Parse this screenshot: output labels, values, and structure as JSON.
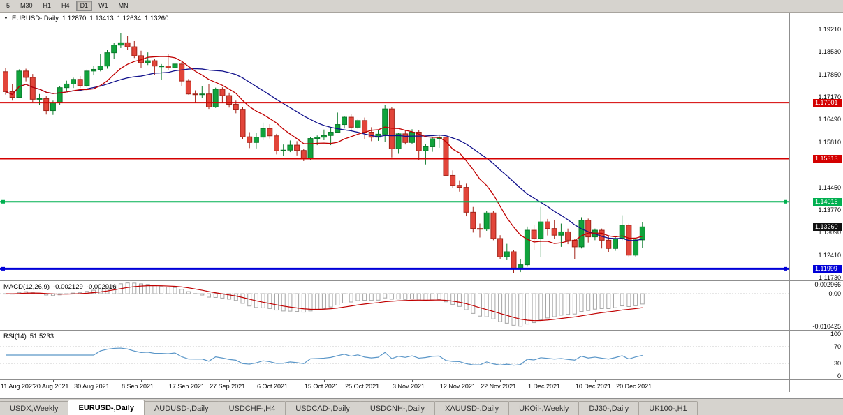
{
  "toolbar": {
    "timeframes": [
      "5",
      "M30",
      "H1",
      "H4",
      "D1",
      "W1",
      "MN"
    ],
    "active": "D1"
  },
  "chart_data": {
    "type": "candlestick",
    "title": "EURUSD-,Daily",
    "header": {
      "symbol": "EURUSD-,Daily",
      "open": "1.12870",
      "high": "1.13413",
      "low": "1.12634",
      "close": "1.13260"
    },
    "y_range": [
      1.1165,
      1.1971
    ],
    "y_axis_labels": [
      "1.19210",
      "1.18530",
      "1.17850",
      "1.17170",
      "1.16490",
      "1.15810",
      "1.14450",
      "1.13770",
      "1.13090",
      "1.12410",
      "1.11730"
    ],
    "hlines": [
      {
        "value": 1.17001,
        "label": "1.17001",
        "color": "#d40000",
        "width": 2,
        "handles": false
      },
      {
        "value": 1.15313,
        "label": "1.15313",
        "color": "#d40000",
        "width": 2,
        "handles": false
      },
      {
        "value": 1.14016,
        "label": "1.14016",
        "color": "#00b050",
        "width": 2,
        "handles": true
      },
      {
        "value": 1.11999,
        "label": "1.11999",
        "color": "#0000d8",
        "width": 3,
        "handles": true
      }
    ],
    "current_price": {
      "value": 1.1326,
      "label": "1.13260",
      "color": "#111111"
    },
    "ma": [
      {
        "period": 10,
        "color": "#c00000"
      },
      {
        "period": 21,
        "color": "#12128c"
      }
    ],
    "colors": {
      "up": "#10a33c",
      "up_border": "#0b7a2b",
      "down": "#e2453a",
      "down_border": "#a32318",
      "macd_hist": "#a6a6a6",
      "macd_signal": "#c00000",
      "rsi_line": "#5a96c8"
    },
    "candles": [
      [
        1.1793,
        1.1805,
        1.1724,
        1.1733
      ],
      [
        1.1733,
        1.1755,
        1.1706,
        1.1716
      ],
      [
        1.1716,
        1.18,
        1.1713,
        1.1795
      ],
      [
        1.1795,
        1.1802,
        1.1764,
        1.1776
      ],
      [
        1.1776,
        1.1786,
        1.1702,
        1.171
      ],
      [
        1.171,
        1.1726,
        1.1694,
        1.1712
      ],
      [
        1.1712,
        1.1719,
        1.1664,
        1.1676
      ],
      [
        1.1676,
        1.1706,
        1.1663,
        1.17
      ],
      [
        1.17,
        1.1749,
        1.1694,
        1.1745
      ],
      [
        1.1745,
        1.1766,
        1.1735,
        1.1756
      ],
      [
        1.1756,
        1.1775,
        1.1744,
        1.177
      ],
      [
        1.177,
        1.178,
        1.1744,
        1.1751
      ],
      [
        1.1751,
        1.18,
        1.1746,
        1.1795
      ],
      [
        1.1795,
        1.181,
        1.1782,
        1.18
      ],
      [
        1.18,
        1.1846,
        1.1794,
        1.181
      ],
      [
        1.181,
        1.1858,
        1.1802,
        1.185
      ],
      [
        1.185,
        1.188,
        1.1832,
        1.1873
      ],
      [
        1.1873,
        1.1909,
        1.1864,
        1.188
      ],
      [
        1.188,
        1.19,
        1.1858,
        1.1868
      ],
      [
        1.1868,
        1.1885,
        1.1834,
        1.1841
      ],
      [
        1.1841,
        1.1856,
        1.1804,
        1.182
      ],
      [
        1.182,
        1.1851,
        1.1813,
        1.1826
      ],
      [
        1.1826,
        1.1831,
        1.1784,
        1.181
      ],
      [
        1.181,
        1.1816,
        1.1769,
        1.181
      ],
      [
        1.181,
        1.1846,
        1.1798,
        1.1805
      ],
      [
        1.1805,
        1.1821,
        1.1793,
        1.1816
      ],
      [
        1.1816,
        1.1822,
        1.175,
        1.1765
      ],
      [
        1.1765,
        1.1771,
        1.1724,
        1.1726
      ],
      [
        1.1726,
        1.1737,
        1.17,
        1.1725
      ],
      [
        1.1725,
        1.1749,
        1.1714,
        1.1726
      ],
      [
        1.1726,
        1.1756,
        1.1681,
        1.1687
      ],
      [
        1.1687,
        1.1745,
        1.1684,
        1.174
      ],
      [
        1.174,
        1.1746,
        1.1701,
        1.1721
      ],
      [
        1.1721,
        1.173,
        1.1685,
        1.1695
      ],
      [
        1.1695,
        1.1706,
        1.1668,
        1.168
      ],
      [
        1.168,
        1.1687,
        1.1589,
        1.1597
      ],
      [
        1.1597,
        1.1611,
        1.1563,
        1.158
      ],
      [
        1.158,
        1.1608,
        1.1562,
        1.1596
      ],
      [
        1.1596,
        1.164,
        1.1587,
        1.1622
      ],
      [
        1.1622,
        1.1635,
        1.1592,
        1.16
      ],
      [
        1.16,
        1.1606,
        1.1544,
        1.1555
      ],
      [
        1.1555,
        1.1574,
        1.1539,
        1.1557
      ],
      [
        1.1557,
        1.1586,
        1.1551,
        1.1572
      ],
      [
        1.1572,
        1.1584,
        1.1541,
        1.1556
      ],
      [
        1.1556,
        1.1561,
        1.1524,
        1.1531
      ],
      [
        1.1531,
        1.1596,
        1.1526,
        1.1592
      ],
      [
        1.1592,
        1.1601,
        1.1572,
        1.1596
      ],
      [
        1.1596,
        1.1619,
        1.1587,
        1.1601
      ],
      [
        1.1601,
        1.1626,
        1.1572,
        1.1611
      ],
      [
        1.1611,
        1.167,
        1.1609,
        1.1634
      ],
      [
        1.1634,
        1.1659,
        1.1622,
        1.1656
      ],
      [
        1.1656,
        1.1666,
        1.1617,
        1.1626
      ],
      [
        1.1626,
        1.165,
        1.162,
        1.1646
      ],
      [
        1.1646,
        1.1655,
        1.159,
        1.1611
      ],
      [
        1.1611,
        1.1626,
        1.1584,
        1.1596
      ],
      [
        1.1596,
        1.1617,
        1.1585,
        1.1605
      ],
      [
        1.1605,
        1.1692,
        1.1582,
        1.1681
      ],
      [
        1.1681,
        1.1686,
        1.1535,
        1.1561
      ],
      [
        1.1561,
        1.161,
        1.1546,
        1.1606
      ],
      [
        1.1606,
        1.1616,
        1.1574,
        1.158
      ],
      [
        1.158,
        1.162,
        1.1576,
        1.1611
      ],
      [
        1.1611,
        1.1618,
        1.1528,
        1.1555
      ],
      [
        1.1555,
        1.1576,
        1.1514,
        1.1567
      ],
      [
        1.1567,
        1.1596,
        1.1552,
        1.1591
      ],
      [
        1.1591,
        1.1601,
        1.1564,
        1.1596
      ],
      [
        1.1596,
        1.16,
        1.1474,
        1.1481
      ],
      [
        1.1481,
        1.1496,
        1.1443,
        1.1451
      ],
      [
        1.1451,
        1.1466,
        1.1432,
        1.1445
      ],
      [
        1.1445,
        1.1456,
        1.1358,
        1.137
      ],
      [
        1.137,
        1.1386,
        1.1309,
        1.1321
      ],
      [
        1.1321,
        1.1336,
        1.1294,
        1.1319
      ],
      [
        1.1319,
        1.1374,
        1.1314,
        1.1368
      ],
      [
        1.1368,
        1.1374,
        1.1286,
        1.1291
      ],
      [
        1.1291,
        1.1301,
        1.1228,
        1.1236
      ],
      [
        1.1236,
        1.1275,
        1.1226,
        1.1251
      ],
      [
        1.1251,
        1.1256,
        1.1186,
        1.1201
      ],
      [
        1.1201,
        1.123,
        1.119,
        1.1212
      ],
      [
        1.1212,
        1.1327,
        1.1206,
        1.1316
      ],
      [
        1.1316,
        1.1331,
        1.1256,
        1.1291
      ],
      [
        1.1291,
        1.1386,
        1.1236,
        1.1341
      ],
      [
        1.1341,
        1.135,
        1.13,
        1.1321
      ],
      [
        1.1321,
        1.1346,
        1.129,
        1.1301
      ],
      [
        1.1301,
        1.1336,
        1.1266,
        1.1311
      ],
      [
        1.1311,
        1.1321,
        1.1274,
        1.1286
      ],
      [
        1.1286,
        1.1291,
        1.1228,
        1.1266
      ],
      [
        1.1266,
        1.1355,
        1.1261,
        1.1346
      ],
      [
        1.1346,
        1.1351,
        1.1279,
        1.1296
      ],
      [
        1.1296,
        1.1321,
        1.1286,
        1.1316
      ],
      [
        1.1316,
        1.1321,
        1.1261,
        1.1286
      ],
      [
        1.1286,
        1.1301,
        1.1249,
        1.1261
      ],
      [
        1.1261,
        1.1296,
        1.1254,
        1.1291
      ],
      [
        1.1291,
        1.1361,
        1.1286,
        1.1331
      ],
      [
        1.1331,
        1.1336,
        1.1234,
        1.1241
      ],
      [
        1.1241,
        1.1291,
        1.1237,
        1.1287
      ],
      [
        1.1287,
        1.13413,
        1.12634,
        1.1326
      ]
    ],
    "x_labels": [
      {
        "text": "11 Aug 2021",
        "index": 0
      },
      {
        "text": "20 Aug 2021",
        "index": 7
      },
      {
        "text": "30 Aug 2021",
        "index": 13
      },
      {
        "text": "8 Sep 2021",
        "index": 20
      },
      {
        "text": "17 Sep 2021",
        "index": 27
      },
      {
        "text": "27 Sep 2021",
        "index": 33
      },
      {
        "text": "6 Oct 2021",
        "index": 40
      },
      {
        "text": "15 Oct 2021",
        "index": 47
      },
      {
        "text": "25 Oct 2021",
        "index": 53
      },
      {
        "text": "3 Nov 2021",
        "index": 60
      },
      {
        "text": "12 Nov 2021",
        "index": 67
      },
      {
        "text": "22 Nov 2021",
        "index": 73
      },
      {
        "text": "1 Dec 2021",
        "index": 80
      },
      {
        "text": "10 Dec 2021",
        "index": 87
      },
      {
        "text": "20 Dec 2021",
        "index": 93
      }
    ],
    "macd": {
      "label": "MACD(12,26,9)",
      "value_main": "-0.002129",
      "value_signal": "-0.002916",
      "params": [
        12,
        26,
        9
      ],
      "y_range": [
        -0.0115,
        0.004
      ],
      "axis": [
        "0.002966",
        "0.00",
        "-0.010425"
      ]
    },
    "rsi": {
      "label": "RSI(14)",
      "value": "51.5233",
      "period": 14,
      "y_range": [
        0,
        100
      ],
      "levels": [
        70,
        30
      ],
      "axis": [
        "100",
        "70",
        "30",
        "0"
      ]
    }
  },
  "tabs": [
    {
      "label": "USDX,Weekly",
      "active": false
    },
    {
      "label": "EURUSD-,Daily",
      "active": true
    },
    {
      "label": "AUDUSD-,Daily",
      "active": false
    },
    {
      "label": "USDCHF-,H4",
      "active": false
    },
    {
      "label": "USDCAD-,Daily",
      "active": false
    },
    {
      "label": "USDCNH-,Daily",
      "active": false
    },
    {
      "label": "XAUUSD-,Daily",
      "active": false
    },
    {
      "label": "UKOil-,Weekly",
      "active": false
    },
    {
      "label": "DJ30-,Daily",
      "active": false
    },
    {
      "label": "UK100-,H1",
      "active": false
    }
  ]
}
